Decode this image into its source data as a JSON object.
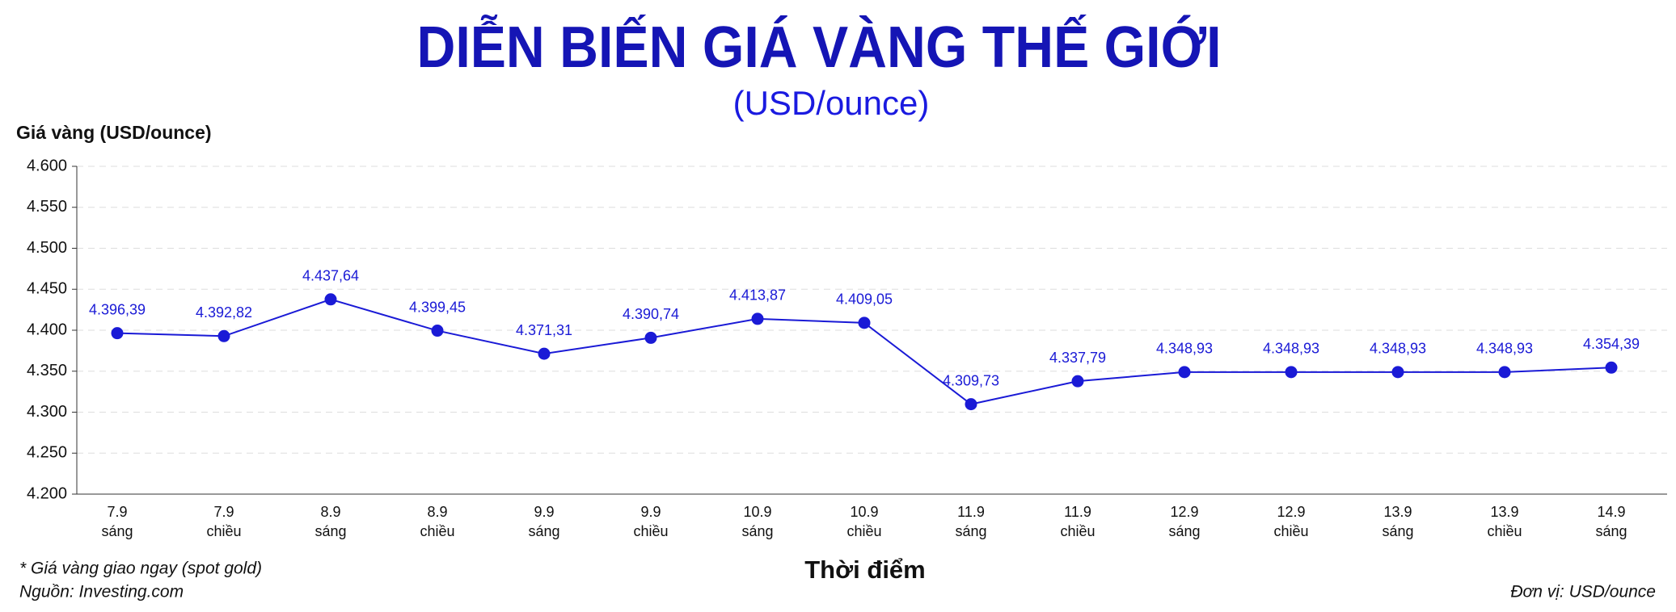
{
  "chart_data": {
    "type": "line",
    "title": "DIỄN BIẾN GIÁ VÀNG THẾ GIỚI",
    "subtitle": "(USD/ounce)",
    "y_label": "Giá vàng (USD/ounce)",
    "x_label": "Thời điểm",
    "notes": [
      "* Giá vàng giao ngay (spot gold)",
      "Nguồn: Investing.com"
    ],
    "unit_note": "Đơn vị: USD/ounce",
    "categories": [
      [
        "7.9",
        "sáng"
      ],
      [
        "7.9",
        "chiều"
      ],
      [
        "8.9",
        "sáng"
      ],
      [
        "8.9",
        "chiều"
      ],
      [
        "9.9",
        "sáng"
      ],
      [
        "9.9",
        "chiều"
      ],
      [
        "10.9",
        "sáng"
      ],
      [
        "10.9",
        "chiều"
      ],
      [
        "11.9",
        "sáng"
      ],
      [
        "11.9",
        "chiều"
      ],
      [
        "12.9",
        "sáng"
      ],
      [
        "12.9",
        "chiều"
      ],
      [
        "13.9",
        "sáng"
      ],
      [
        "13.9",
        "chiều"
      ],
      [
        "14.9",
        "sáng"
      ]
    ],
    "values": [
      4396.39,
      4392.82,
      4437.64,
      4399.45,
      4371.31,
      4390.74,
      4413.87,
      4409.05,
      4309.73,
      4337.79,
      4348.93,
      4348.93,
      4348.93,
      4348.93,
      4354.39
    ],
    "value_labels": [
      "4.396,39",
      "4.392,82",
      "4.437,64",
      "4.399,45",
      "4.371,31",
      "4.390,74",
      "4.413,87",
      "4.409,05",
      "4.309,73",
      "4.337,79",
      "4.348,93",
      "4.348,93",
      "4.348,93",
      "4.348,93",
      "4.354,39"
    ],
    "color": "#1a1ad6",
    "ylim": [
      4200,
      4600
    ],
    "yticks": [
      {
        "value": 4200,
        "label": "4.200"
      },
      {
        "value": 4250,
        "label": "4.250"
      },
      {
        "value": 4300,
        "label": "4.300"
      },
      {
        "value": 4350,
        "label": "4.350"
      },
      {
        "value": 4400,
        "label": "4.400"
      },
      {
        "value": 4450,
        "label": "4.450"
      },
      {
        "value": 4500,
        "label": "4.500"
      },
      {
        "value": 4550,
        "label": "4.550"
      },
      {
        "value": 4600,
        "label": "4.600"
      }
    ],
    "grid": true
  }
}
